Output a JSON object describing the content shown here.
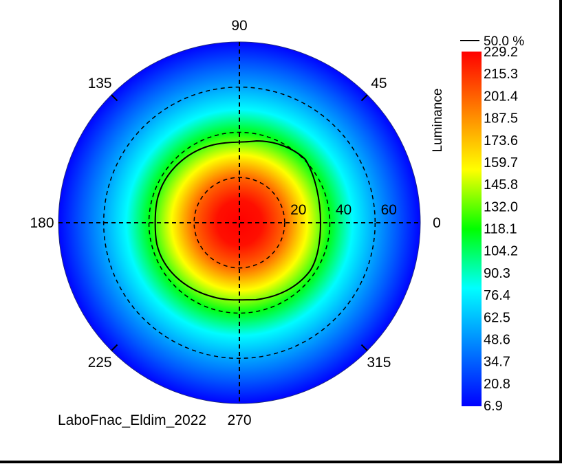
{
  "chart_data": {
    "type": "heatmap",
    "projection": "polar",
    "title": "",
    "caption": "LaboFnac_Eldim_2022",
    "colorbar_label": "Luminance",
    "contour_label": "50.0 %",
    "azimuth_labels": [
      "0",
      "45",
      "90",
      "135",
      "180",
      "225",
      "270",
      "315"
    ],
    "radius_labels": [
      "20",
      "40",
      "60"
    ],
    "radius_range": [
      0,
      80
    ],
    "grid": true,
    "colorbar_ticks": [
      "229.2",
      "215.3",
      "201.4",
      "187.5",
      "173.6",
      "159.7",
      "145.8",
      "132.0",
      "118.1",
      "104.2",
      "90.3",
      "76.4",
      "62.5",
      "48.6",
      "34.7",
      "20.8",
      "6.9"
    ],
    "value_range": [
      6.9,
      229.2
    ],
    "colormap": [
      "#ff0000",
      "#ff8000",
      "#ffff00",
      "#00ff00",
      "#00ffff",
      "#0080ff",
      "#0000ff"
    ],
    "radial_profile": [
      {
        "angle": 0,
        "luminance": 229.2
      },
      {
        "angle": 10,
        "luminance": 225
      },
      {
        "angle": 20,
        "luminance": 200
      },
      {
        "angle": 30,
        "luminance": 155
      },
      {
        "angle": 40,
        "luminance": 115
      },
      {
        "angle": 50,
        "luminance": 80
      },
      {
        "angle": 60,
        "luminance": 55
      },
      {
        "angle": 70,
        "luminance": 32
      },
      {
        "angle": 80,
        "luminance": 8
      }
    ]
  }
}
